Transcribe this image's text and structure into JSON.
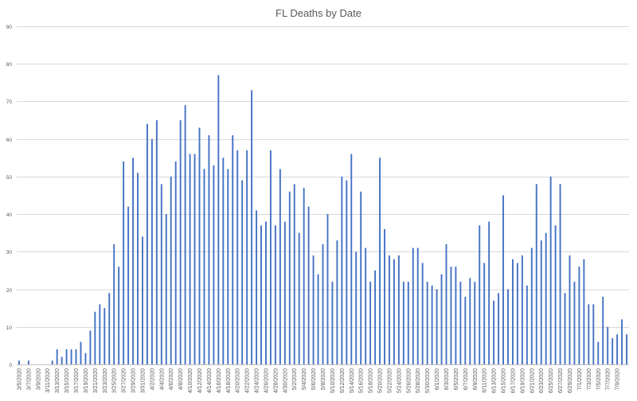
{
  "chart_data": {
    "type": "bar",
    "title": "FL Deaths by Date",
    "xlabel": "",
    "ylabel": "",
    "ylim": [
      0,
      90
    ],
    "yticks": [
      0,
      10,
      20,
      30,
      40,
      50,
      60,
      70,
      80,
      90
    ],
    "grid": true,
    "legend": "none",
    "color": "#4472c4",
    "categories": [
      "3/5/2020",
      "3/6/2020",
      "3/7/2020",
      "3/8/2020",
      "3/9/2020",
      "3/10/2020",
      "3/11/2020",
      "3/12/2020",
      "3/13/2020",
      "3/14/2020",
      "3/15/2020",
      "3/16/2020",
      "3/17/2020",
      "3/18/2020",
      "3/19/2020",
      "3/20/2020",
      "3/21/2020",
      "3/22/2020",
      "3/23/2020",
      "3/24/2020",
      "3/25/2020",
      "3/26/2020",
      "3/27/2020",
      "3/28/2020",
      "3/29/2020",
      "3/30/2020",
      "3/31/2020",
      "4/1/2020",
      "4/2/2020",
      "4/3/2020",
      "4/4/2020",
      "4/5/2020",
      "4/6/2020",
      "4/7/2020",
      "4/8/2020",
      "4/9/2020",
      "4/10/2020",
      "4/11/2020",
      "4/12/2020",
      "4/13/2020",
      "4/14/2020",
      "4/15/2020",
      "4/16/2020",
      "4/17/2020",
      "4/18/2020",
      "4/19/2020",
      "4/20/2020",
      "4/21/2020",
      "4/22/2020",
      "4/23/2020",
      "4/24/2020",
      "4/25/2020",
      "4/26/2020",
      "4/27/2020",
      "4/28/2020",
      "4/29/2020",
      "4/30/2020",
      "5/1/2020",
      "5/2/2020",
      "5/3/2020",
      "5/4/2020",
      "5/5/2020",
      "5/6/2020",
      "5/7/2020",
      "5/8/2020",
      "5/9/2020",
      "5/10/2020",
      "5/11/2020",
      "5/12/2020",
      "5/13/2020",
      "5/14/2020",
      "5/15/2020",
      "5/16/2020",
      "5/17/2020",
      "5/18/2020",
      "5/19/2020",
      "5/20/2020",
      "5/21/2020",
      "5/22/2020",
      "5/23/2020",
      "5/24/2020",
      "5/25/2020",
      "5/26/2020",
      "5/27/2020",
      "5/28/2020",
      "5/29/2020",
      "5/30/2020",
      "5/31/2020",
      "6/1/2020",
      "6/2/2020",
      "6/3/2020",
      "6/4/2020",
      "6/5/2020",
      "6/6/2020",
      "6/7/2020",
      "6/8/2020",
      "6/9/2020",
      "6/10/2020",
      "6/11/2020",
      "6/12/2020",
      "6/13/2020",
      "6/14/2020",
      "6/15/2020",
      "6/16/2020",
      "6/17/2020",
      "6/18/2020",
      "6/19/2020",
      "6/20/2020",
      "6/21/2020",
      "6/22/2020",
      "6/23/2020",
      "6/24/2020",
      "6/25/2020",
      "6/26/2020",
      "6/27/2020",
      "6/28/2020",
      "6/29/2020",
      "6/30/2020",
      "7/1/2020",
      "7/2/2020",
      "7/3/2020",
      "7/4/2020",
      "7/5/2020",
      "7/6/2020",
      "7/7/2020",
      "7/8/2020",
      "7/9/2020",
      "7/10/2020",
      "7/11/2020"
    ],
    "values": [
      1,
      0,
      1,
      0,
      0,
      0,
      0,
      1,
      4,
      2,
      4,
      4,
      4,
      6,
      3,
      9,
      14,
      16,
      15,
      19,
      32,
      26,
      54,
      42,
      55,
      51,
      34,
      64,
      60,
      65,
      48,
      40,
      50,
      54,
      65,
      69,
      56,
      56,
      63,
      52,
      61,
      53,
      77,
      55,
      52,
      61,
      57,
      49,
      57,
      73,
      41,
      37,
      38,
      57,
      37,
      52,
      38,
      46,
      48,
      35,
      47,
      42,
      29,
      24,
      32,
      40,
      22,
      33,
      50,
      49,
      56,
      30,
      46,
      31,
      22,
      25,
      55,
      36,
      29,
      28,
      29,
      22,
      22,
      31,
      31,
      27,
      22,
      21,
      20,
      24,
      32,
      26,
      26,
      22,
      18,
      23,
      22,
      37,
      27,
      38,
      17,
      19,
      45,
      20,
      28,
      27,
      29,
      21,
      31,
      48,
      33,
      35,
      50,
      37,
      48,
      19,
      29,
      22,
      26,
      28,
      16,
      16,
      6,
      18,
      10,
      7,
      8,
      12,
      8
    ],
    "tick_labels": [
      "3/5/2020",
      "3/7/2020",
      "3/9/2020",
      "3/11/2020",
      "3/13/2020",
      "3/15/2020",
      "3/17/2020",
      "3/19/2020",
      "3/21/2020",
      "3/23/2020",
      "3/25/2020",
      "3/27/2020",
      "3/29/2020",
      "3/31/2020",
      "4/2/2020",
      "4/4/2020",
      "4/6/2020",
      "4/8/2020",
      "4/10/2020",
      "4/12/2020",
      "4/14/2020",
      "4/16/2020",
      "4/18/2020",
      "4/20/2020",
      "4/22/2020",
      "4/24/2020",
      "4/26/2020",
      "4/28/2020",
      "4/30/2020",
      "5/2/2020",
      "5/4/2020",
      "5/6/2020",
      "5/8/2020",
      "5/10/2020",
      "5/12/2020",
      "5/14/2020",
      "5/16/2020",
      "5/18/2020",
      "5/20/2020",
      "5/22/2020",
      "5/24/2020",
      "5/26/2020",
      "5/28/2020",
      "5/30/2020",
      "6/1/2020",
      "6/3/2020",
      "6/5/2020",
      "6/7/2020",
      "6/9/2020",
      "6/11/2020",
      "6/13/2020",
      "6/15/2020",
      "6/17/2020",
      "6/19/2020",
      "6/21/2020",
      "6/23/2020",
      "6/25/2020",
      "6/27/2020",
      "6/29/2020",
      "7/1/2020",
      "7/3/2020",
      "7/5/2020",
      "7/7/2020",
      "7/9/2020"
    ]
  }
}
